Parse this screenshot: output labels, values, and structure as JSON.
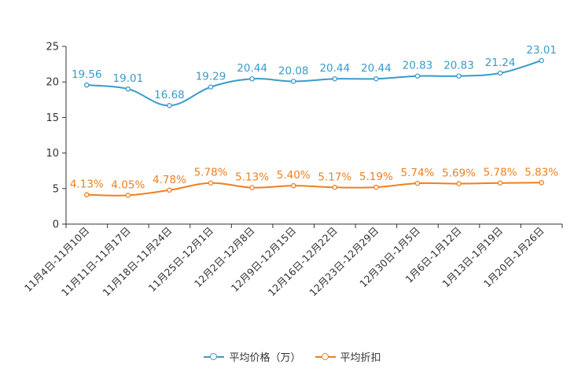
{
  "chart_data": {
    "type": "line",
    "title": "",
    "xlabel": "",
    "ylabel": "",
    "ylim": [
      0,
      25
    ],
    "yticks": [
      0,
      5,
      10,
      15,
      20,
      25
    ],
    "categories": [
      "11月4日-11月10日",
      "11月11日-11月17日",
      "11月18日-11月24日",
      "11月25日-12月1日",
      "12月2日-12月8日",
      "12月9日-12月15日",
      "12月16日-12月22日",
      "12月23日-12月29日",
      "12月30日-1月5日",
      "1月6日-1月12日",
      "1月13日-1月19日",
      "1月20日-1月26日"
    ],
    "series": [
      {
        "name": "平均价格（万）",
        "color": "#3a9bc9",
        "values": [
          19.56,
          19.01,
          16.68,
          19.29,
          20.44,
          20.08,
          20.44,
          20.44,
          20.83,
          20.83,
          21.24,
          23.01
        ],
        "labels": [
          "19.56",
          "19.01",
          "16.68",
          "19.29",
          "20.44",
          "20.08",
          "20.44",
          "20.44",
          "20.83",
          "20.83",
          "21.24",
          "23.01"
        ]
      },
      {
        "name": "平均折扣",
        "color": "#f07f1e",
        "values": [
          4.13,
          4.05,
          4.78,
          5.78,
          5.13,
          5.4,
          5.17,
          5.19,
          5.74,
          5.69,
          5.78,
          5.83
        ],
        "labels": [
          "4.13%",
          "4.05%",
          "4.78%",
          "5.78%",
          "5.13%",
          "5.40%",
          "5.17%",
          "5.19%",
          "5.74%",
          "5.69%",
          "5.78%",
          "5.83%"
        ]
      }
    ],
    "legend": "bottom"
  }
}
